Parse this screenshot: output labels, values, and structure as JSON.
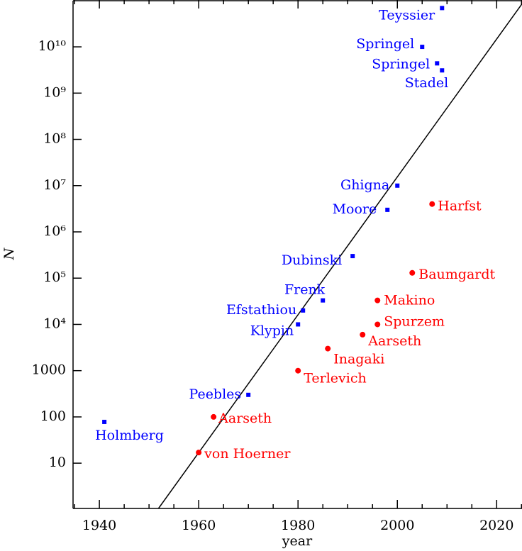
{
  "chart_data": {
    "type": "scatter",
    "x_label": "year",
    "y_label": "N",
    "xlim": [
      1934.7,
      2025.1
    ],
    "ylim": [
      1.05,
      103000000000.0
    ],
    "y_scale": "log",
    "xticks": [
      1940,
      1960,
      1980,
      2000,
      2020
    ],
    "xminorticks": [
      1935,
      1945,
      1950,
      1955,
      1965,
      1970,
      1975,
      1985,
      1990,
      1995,
      2005,
      2010,
      2015,
      2025
    ],
    "yticks": [
      10,
      100,
      1000,
      {
        "value": 10000,
        "label": "10⁴"
      },
      {
        "value": 100000,
        "label": "10⁵"
      },
      {
        "value": 1000000,
        "label": "10⁶"
      },
      {
        "value": 10000000,
        "label": "10⁷"
      },
      {
        "value": 100000000,
        "label": "10⁸"
      },
      {
        "value": 1000000000,
        "label": "10⁹"
      },
      {
        "value": 10000000000,
        "label": "10¹⁰"
      }
    ],
    "fit_line": {
      "color": "#000000",
      "x": [
        1951.9,
        2025.1
      ],
      "y": [
        1.05,
        85000000000.0
      ]
    },
    "series": [
      {
        "marker": "square",
        "color": "#0000ff",
        "x": [
          1941,
          1970,
          1980,
          1981,
          1985,
          1991,
          1998,
          2000,
          2005,
          2008,
          2009,
          2009
        ],
        "values": [
          78,
          300,
          10000,
          20000,
          33000,
          300000,
          3000000,
          10000000,
          10000000000,
          4400000000,
          3100000000,
          69000000000
        ],
        "labels": [
          "Holmberg",
          "Peebles",
          "Klypin",
          "Efstathiou",
          "Frenk",
          "Dubinski",
          "Moore",
          "Ghigna",
          "Springel",
          "Springel",
          "Stadel",
          "Teyssier"
        ]
      },
      {
        "marker": "circle",
        "color": "#ff0000",
        "x": [
          1960,
          1963,
          1980,
          1986,
          1993,
          1996,
          1996,
          2003,
          2007
        ],
        "values": [
          17,
          100,
          1000,
          3000,
          6000,
          10000,
          33000,
          130000,
          4000000
        ],
        "labels": [
          "von Hoerner",
          "Aarseth",
          "Terlevich",
          "Inagaki",
          "Aarseth",
          "Spurzem",
          "Makino",
          "Baumgardt",
          "Harfst"
        ]
      }
    ]
  }
}
